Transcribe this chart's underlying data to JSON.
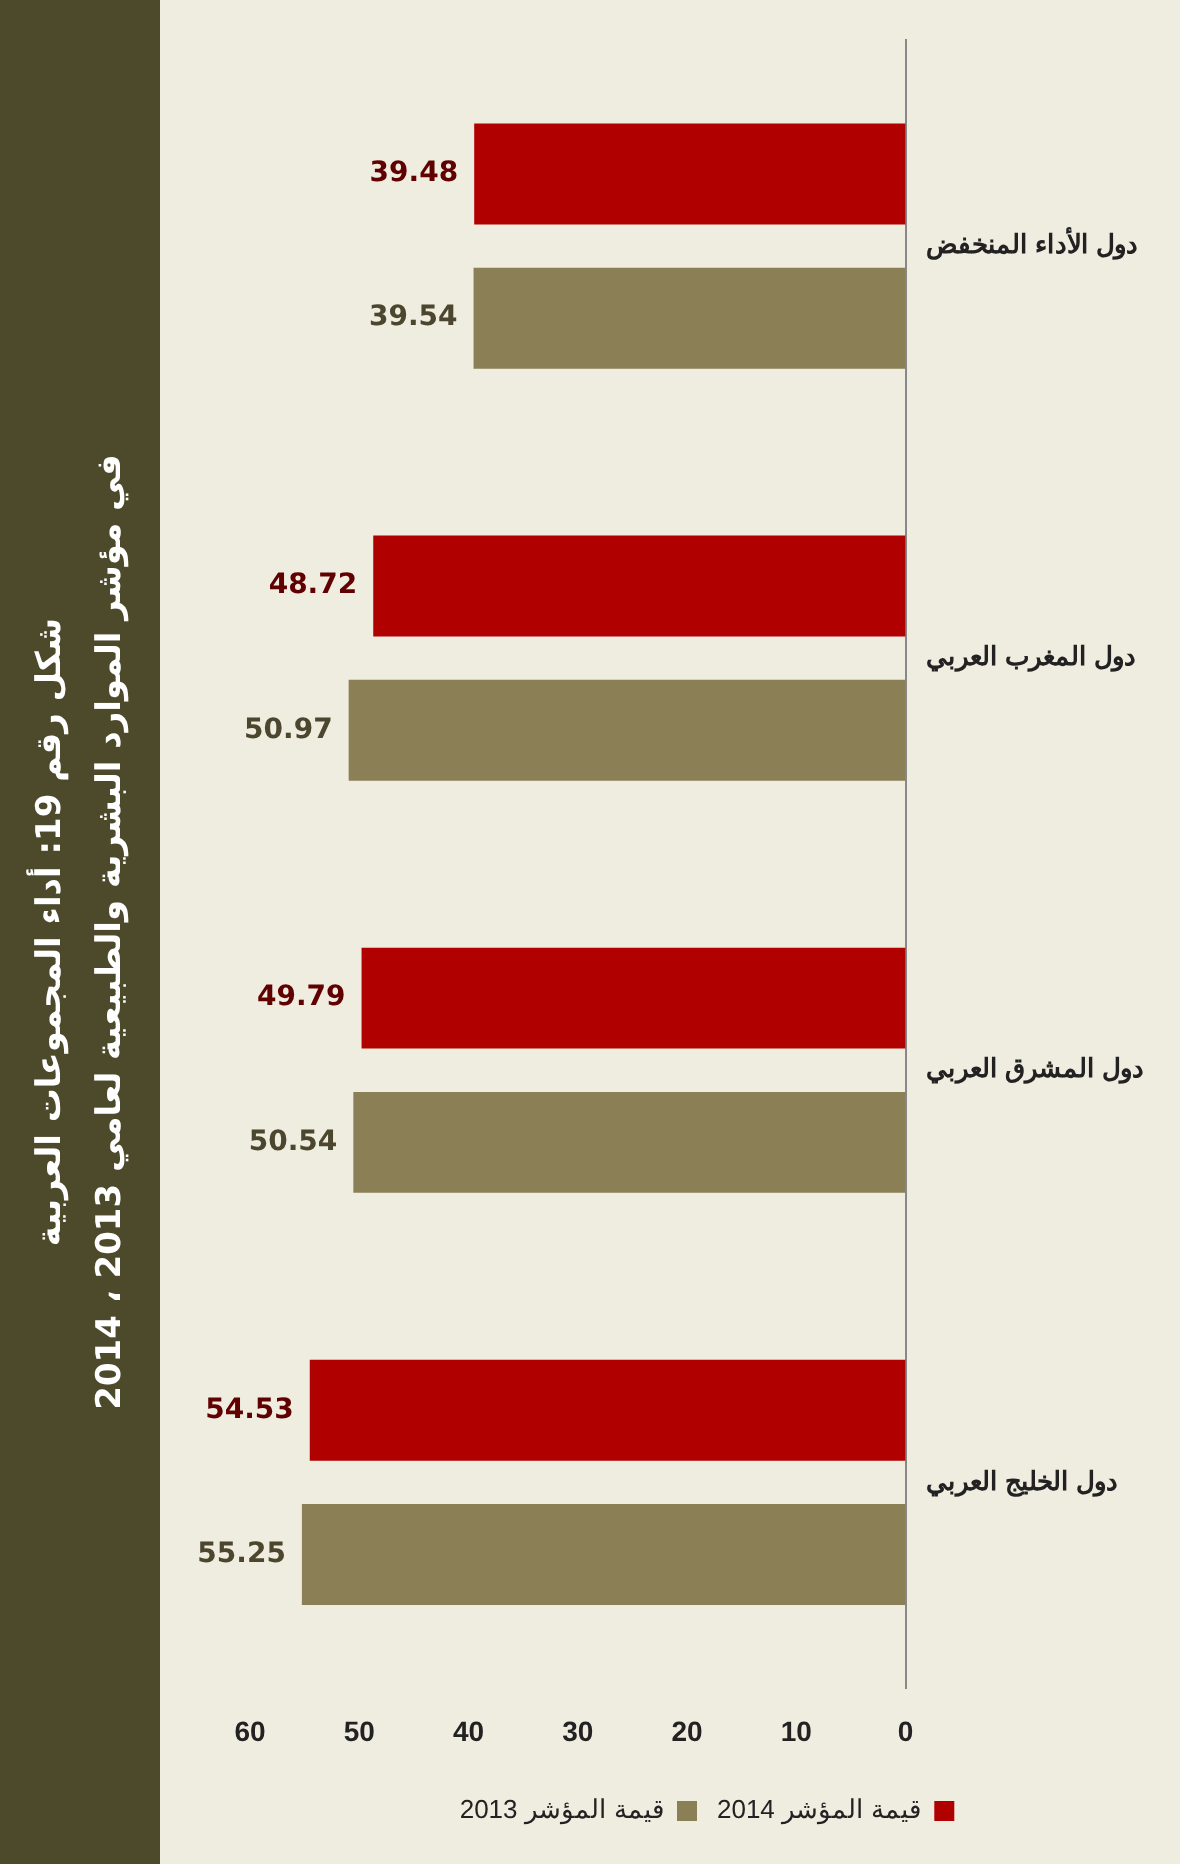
{
  "chart_data": {
    "type": "bar",
    "orientation": "horizontal",
    "title": "شكل رقم 19:  أداء المجموعات العربية",
    "subtitle": "في مؤشر الموارد البشرية والطبيعية لعامي 2013 ، 2014",
    "categories": [
      "دول الأداء المنخفض",
      "دول المغرب العربي",
      "دول المشرق العربي",
      "دول الخليج العربي"
    ],
    "series": [
      {
        "name": "قيمة المؤشر 2014",
        "color": "#b00000",
        "values": [
          39.48,
          48.72,
          49.79,
          54.53
        ]
      },
      {
        "name": "قيمة المؤشر 2013",
        "color": "#8a7f55",
        "values": [
          39.54,
          50.97,
          50.54,
          55.25
        ]
      }
    ],
    "xlim": [
      60,
      0
    ],
    "xticks": [
      0,
      10,
      20,
      30,
      40,
      50,
      60
    ],
    "grid": false,
    "legend": "bottom",
    "data_labels": true
  }
}
